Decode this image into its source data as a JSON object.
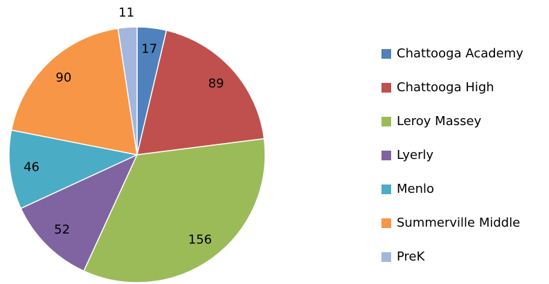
{
  "chart_data": {
    "type": "pie",
    "categories": [
      "Chattooga Academy",
      "Chattooga High",
      "Leroy Massey",
      "Lyerly",
      "Menlo",
      "Summerville Middle",
      "PreK"
    ],
    "values": [
      17,
      89,
      156,
      52,
      46,
      90,
      11
    ],
    "colors": [
      "#4f81bd",
      "#c0504d",
      "#9bbb59",
      "#8064a2",
      "#4bacc6",
      "#f79646",
      "#a2b6de"
    ],
    "legend": "right"
  }
}
